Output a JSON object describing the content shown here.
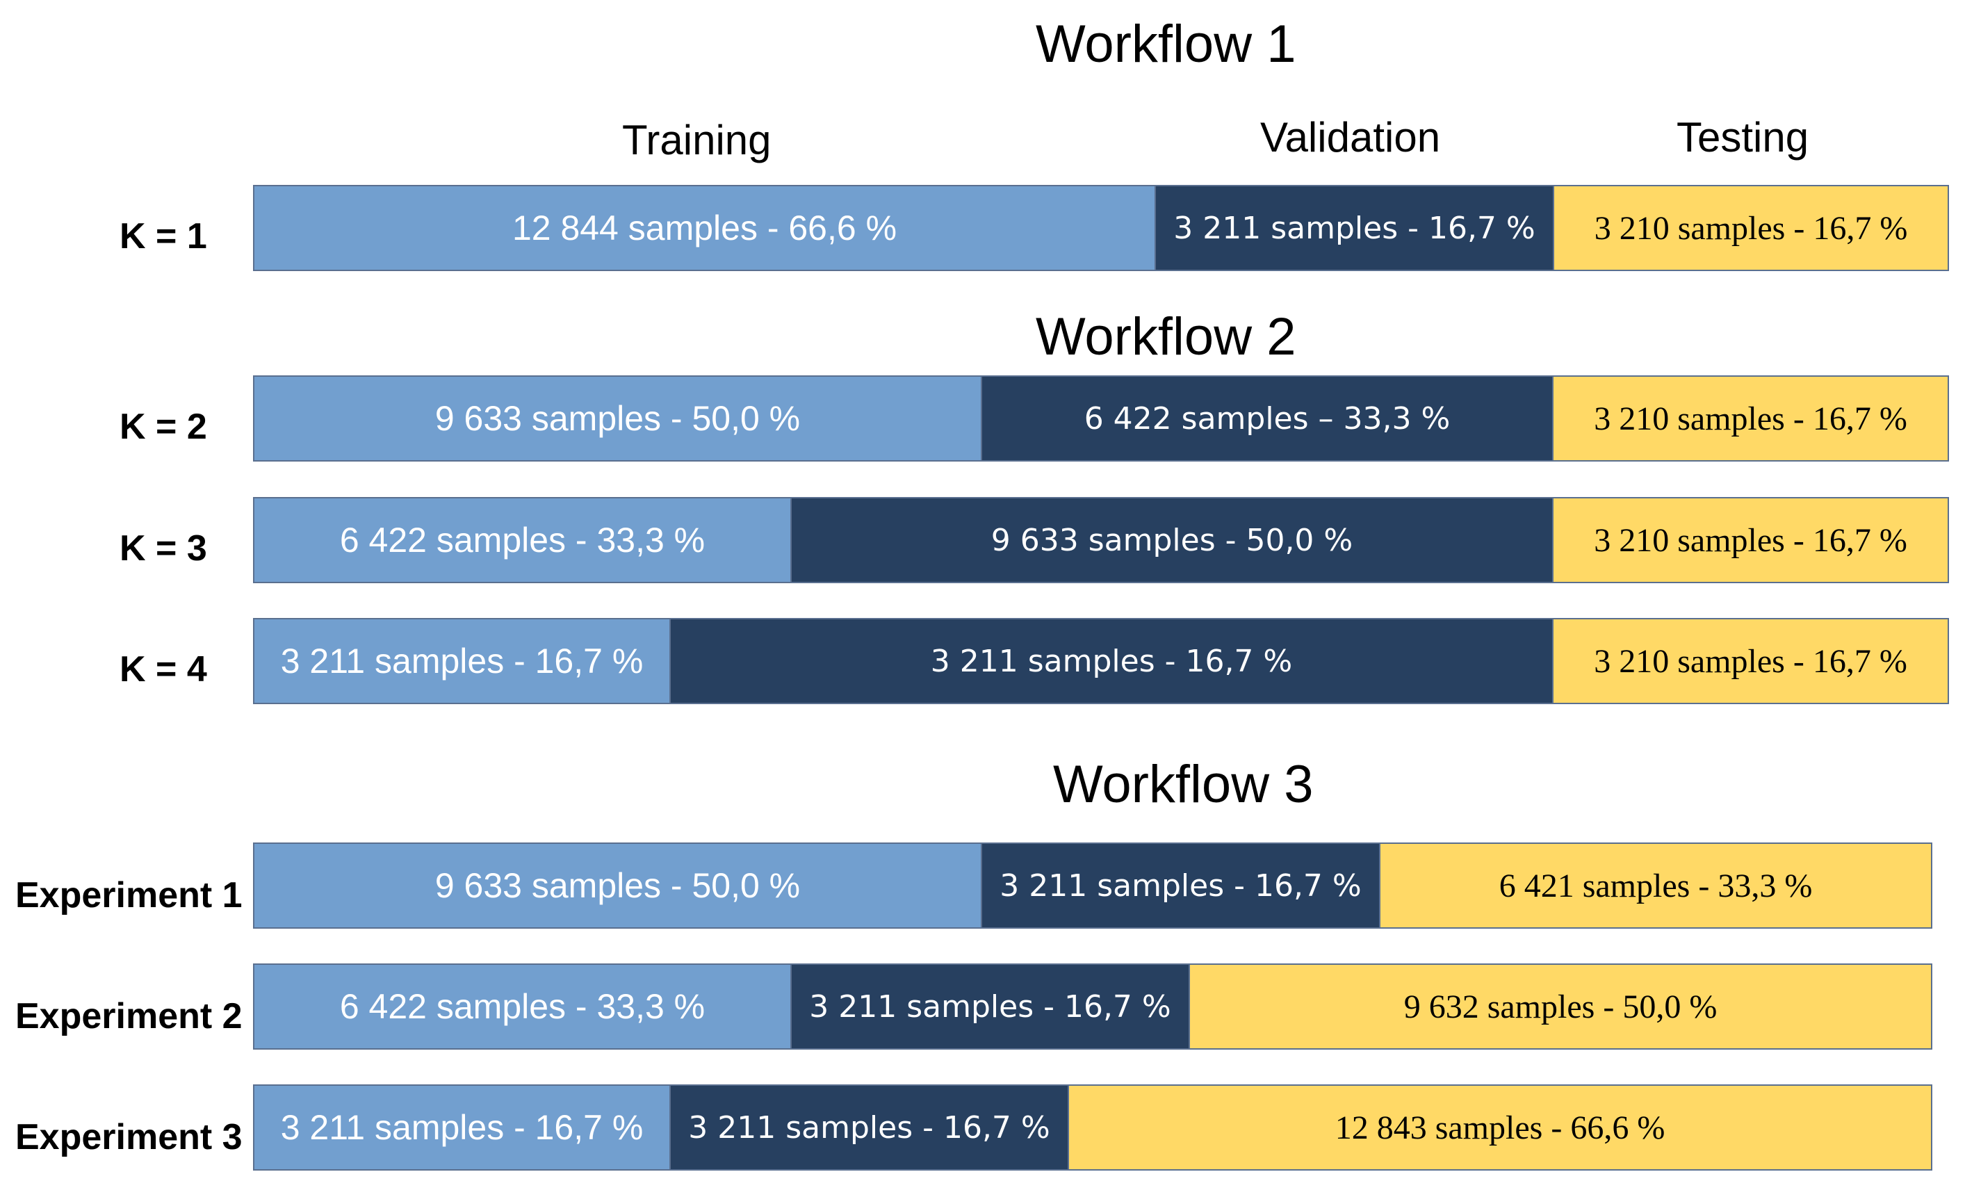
{
  "workflows": [
    {
      "title": "Workflow 1",
      "headers": {
        "training": "Training",
        "validation": "Validation",
        "testing": "Testing"
      },
      "rows": [
        {
          "label": "K = 1",
          "training": {
            "text": "12 844 samples - 66,6 %",
            "percent": 66.6
          },
          "validation": {
            "text": "3 211 samples - 16,7 %",
            "percent": 16.7
          },
          "testing": {
            "text": "3 210 samples - 16,7 %",
            "percent": 16.7
          }
        }
      ]
    },
    {
      "title": "Workflow 2",
      "rows": [
        {
          "label": "K = 2",
          "training": {
            "text": "9 633 samples - 50,0 %",
            "percent": 50.0
          },
          "validation": {
            "text": "6 422 samples – 33,3 %",
            "percent": 33.3
          },
          "testing": {
            "text": "3 210 samples - 16,7 %",
            "percent": 16.7
          }
        },
        {
          "label": "K = 3",
          "training": {
            "text": "6 422 samples - 33,3 %",
            "percent": 33.3
          },
          "validation": {
            "text": "9 633 samples - 50,0 %",
            "percent": 50.0
          },
          "testing": {
            "text": "3 210 samples - 16,7 %",
            "percent": 16.7
          }
        },
        {
          "label": "K = 4",
          "training": {
            "text": "3 211 samples - 16,7 %",
            "percent": 16.7
          },
          "validation": {
            "text": "3 211 samples - 16,7 %",
            "percent": 16.7
          },
          "testing": {
            "text": "3 210 samples - 16,7 %",
            "percent": 16.7
          }
        }
      ]
    },
    {
      "title": "Workflow 3",
      "rows": [
        {
          "label": "Experiment 1",
          "training": {
            "text": "9 633 samples - 50,0 %",
            "percent": 50.0
          },
          "validation": {
            "text": "3 211 samples - 16,7 %",
            "percent": 16.7
          },
          "testing": {
            "text": "6 421 samples - 33,3 %",
            "percent": 33.3
          }
        },
        {
          "label": "Experiment 2",
          "training": {
            "text": "6 422 samples - 33,3 %",
            "percent": 33.3
          },
          "validation": {
            "text": "3 211 samples - 16,7 %",
            "percent": 16.7
          },
          "testing": {
            "text": "9 632 samples - 50,0 %",
            "percent": 50.0
          }
        },
        {
          "label": "Experiment 3",
          "training": {
            "text": "3 211 samples - 16,7 %",
            "percent": 16.7
          },
          "validation": {
            "text": "3 211 samples - 16,7 %",
            "percent": 16.7
          },
          "testing": {
            "text": "12 843 samples - 66,6 %",
            "percent": 66.6
          }
        }
      ]
    }
  ],
  "colors": {
    "training": "#729fcf",
    "validation": "#274060",
    "testing": "#ffd966"
  }
}
